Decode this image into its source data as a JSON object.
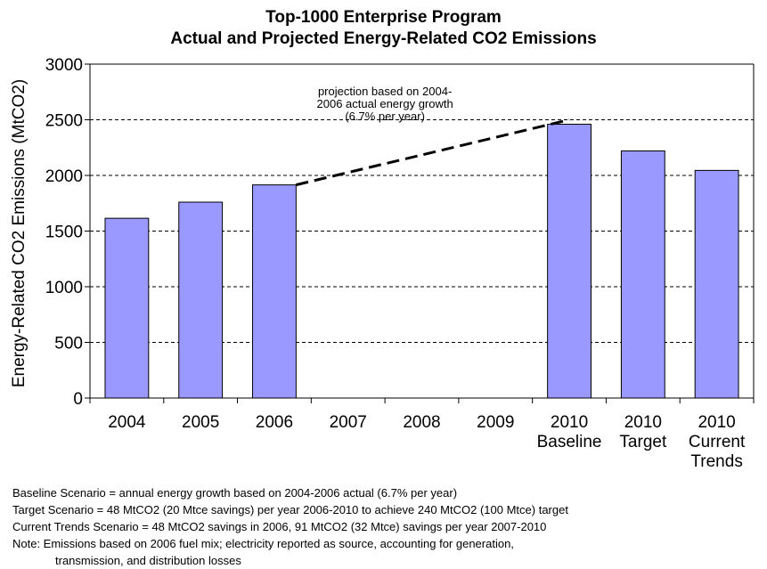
{
  "chart_data": {
    "type": "bar",
    "title": "Top-1000 Enterprise Program",
    "subtitle": "Actual and Projected Energy-Related CO2 Emissions",
    "ylabel": "Energy-Related CO2 Emissions (MtCO2)",
    "xlabel": "",
    "ylim": [
      0,
      3000
    ],
    "yticks": [
      "0",
      "500",
      "1000",
      "1500",
      "2000",
      "2500",
      "3000"
    ],
    "grid": "horizontal dashed",
    "categories": [
      [
        "2004"
      ],
      [
        "2005"
      ],
      [
        "2006"
      ],
      [
        "2007"
      ],
      [
        "2008"
      ],
      [
        "2009"
      ],
      [
        "2010",
        "Baseline"
      ],
      [
        "2010",
        "Target"
      ],
      [
        "2010",
        "Current",
        "Trends"
      ]
    ],
    "values": [
      1615,
      1760,
      1915,
      null,
      null,
      null,
      2460,
      2220,
      2045
    ],
    "bar_color": "#9999ff",
    "projection_line": {
      "from": {
        "category_index": 2,
        "y": 1915
      },
      "to": {
        "category_index": 6,
        "y": 2500
      },
      "style": "dashed",
      "label": [
        "projection based on 2004-",
        "2006 actual energy growth",
        "(6.7% per year)"
      ]
    }
  },
  "notes": [
    "Baseline Scenario = annual energy growth based on 2004-2006 actual (6.7% per year)",
    "Target Scenario = 48 MtCO2 (20 Mtce savings) per year 2006-2010 to achieve 240 MtCO2 (100 Mtce) target",
    "Current Trends Scenario = 48 MtCO2 savings in 2006, 91 MtCO2 (32 Mtce) savings per year 2007-2010",
    "Note: Emissions based on 2006 fuel mix; electricity reported as source, accounting for generation,",
    "transmission, and distribution losses"
  ]
}
